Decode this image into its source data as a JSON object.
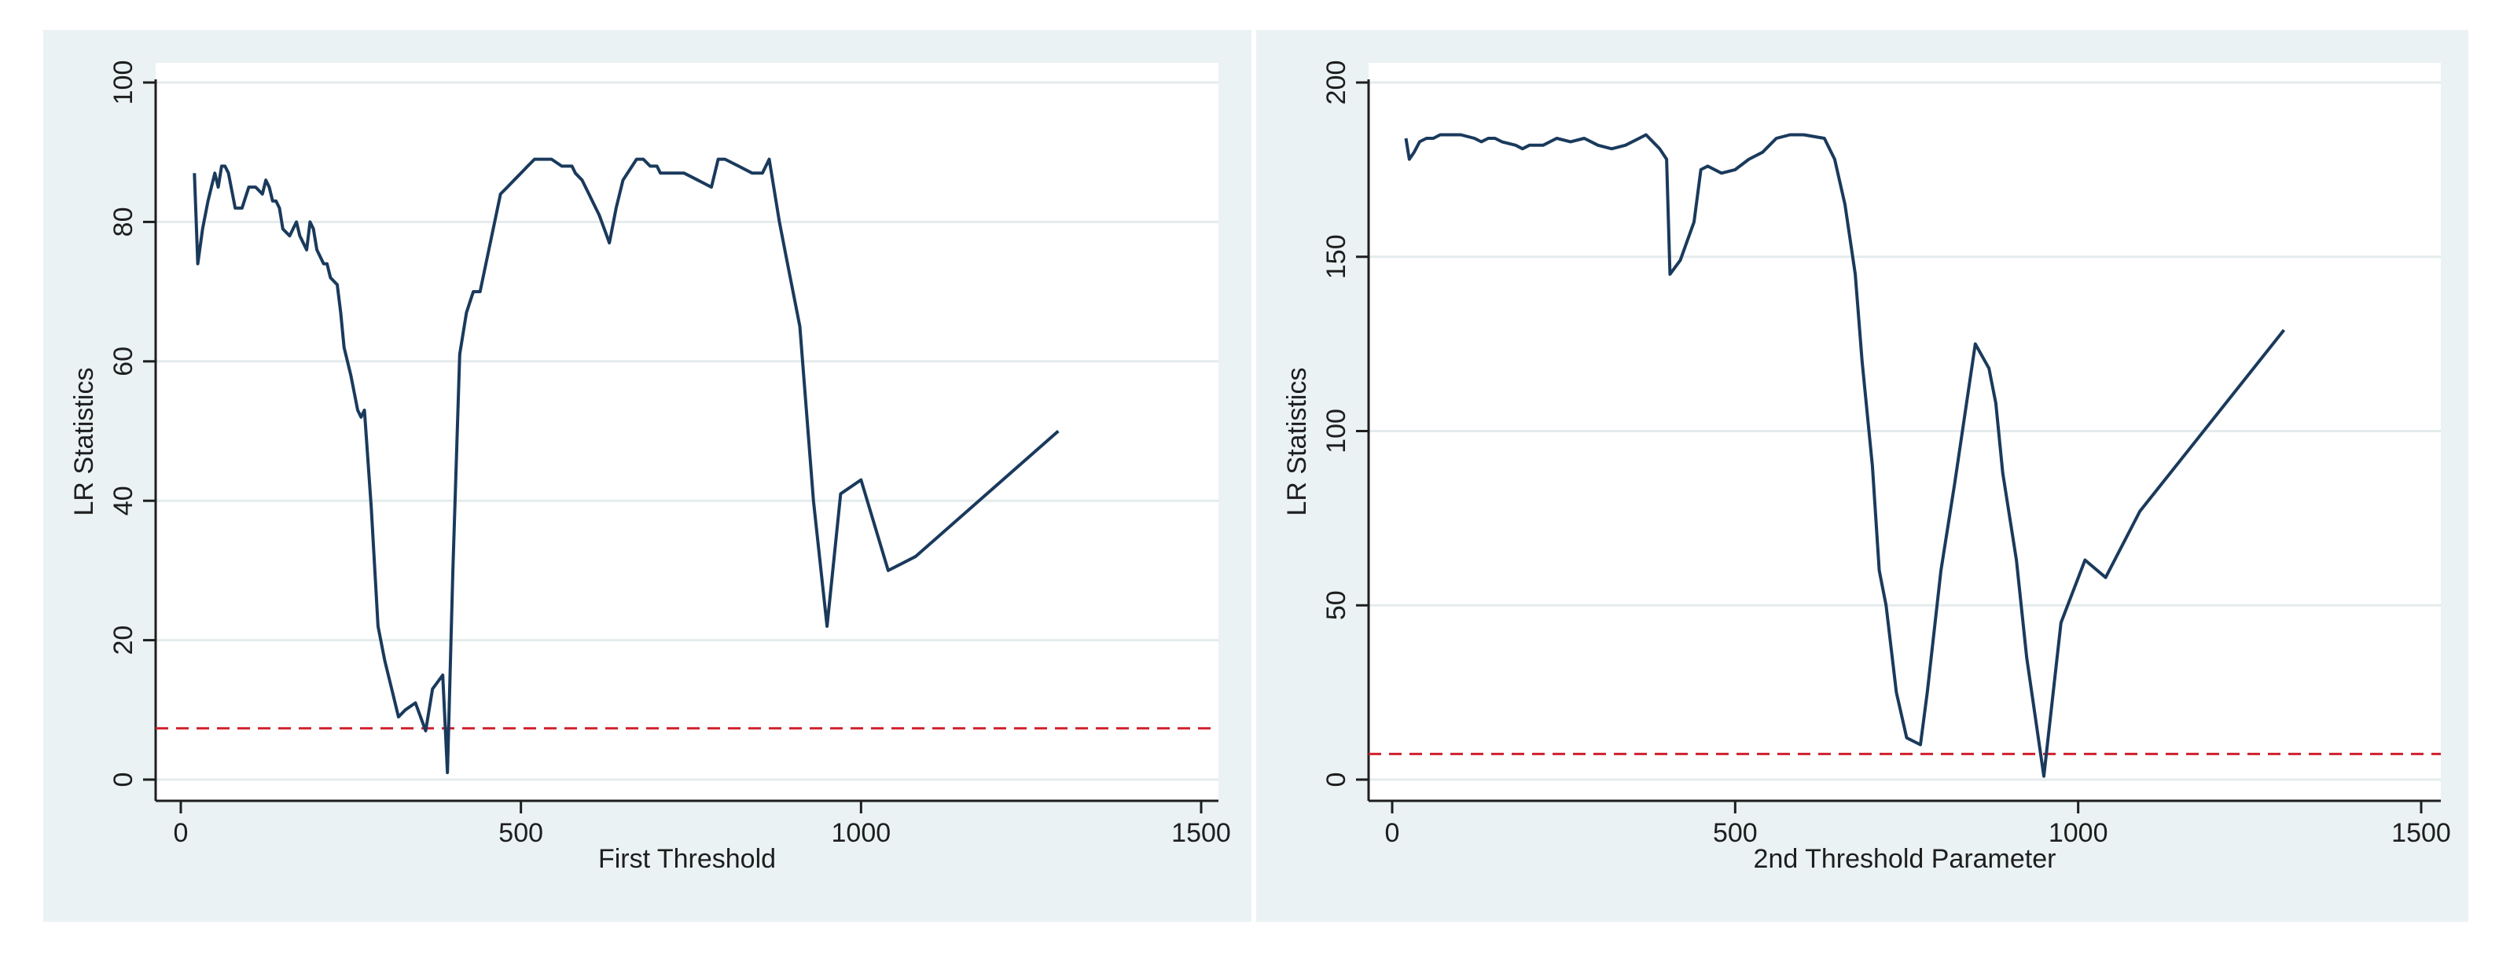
{
  "colors": {
    "outer_bg": "#eaf2f3",
    "plot_bg": "#ffffff",
    "grid": "#e4ebec",
    "axis": "#1e1e1e",
    "text": "#1e1e1e",
    "series_line": "#1a3a5c",
    "threshold_line": "#d0202e"
  },
  "chart_data": [
    {
      "type": "line",
      "title": "",
      "xlabel": "First Threshold",
      "ylabel": "LR Statistics",
      "xlim": [
        0,
        1500
      ],
      "ylim": [
        0,
        100
      ],
      "xticks": [
        "0",
        "500",
        "1000",
        "1500"
      ],
      "yticks": [
        "0",
        "20",
        "40",
        "60",
        "80",
        "100"
      ],
      "grid": true,
      "reference_line": {
        "y": 7.35,
        "style": "dashed"
      },
      "series": [
        {
          "x": [
            20,
            25,
            32,
            40,
            50,
            55,
            60,
            65,
            70,
            80,
            90,
            100,
            110,
            120,
            125,
            130,
            135,
            140,
            145,
            150,
            160,
            170,
            175,
            185,
            190,
            195,
            200,
            205,
            210,
            215,
            220,
            230,
            235,
            240,
            250,
            260,
            265,
            270,
            280,
            290,
            300,
            310,
            320,
            330,
            345,
            360,
            370,
            385,
            392,
            400,
            410,
            420,
            430,
            440,
            455,
            470,
            480,
            490,
            500,
            510,
            520,
            530,
            545,
            560,
            570,
            575,
            580,
            590,
            600,
            605,
            615,
            630,
            640,
            650,
            670,
            680,
            690,
            700,
            705,
            715,
            725,
            740,
            760,
            780,
            790,
            800,
            820,
            840,
            855,
            865,
            880,
            890,
            910,
            930,
            950,
            970,
            1000,
            1040,
            1080,
            1290
          ],
          "y": [
            87,
            74,
            79,
            83,
            87,
            85,
            88,
            88,
            87,
            82,
            82,
            85,
            85,
            84,
            86,
            85,
            83,
            83,
            82,
            79,
            78,
            80,
            78,
            76,
            80,
            79,
            76,
            75,
            74,
            74,
            72,
            71,
            67,
            62,
            58,
            53,
            52,
            53,
            39,
            22,
            17,
            13,
            9,
            10,
            11,
            7,
            13,
            15,
            1,
            30,
            61,
            67,
            70,
            70,
            77,
            84,
            85,
            86,
            87,
            88,
            89,
            89,
            89,
            88,
            88,
            88,
            87,
            86,
            84,
            83,
            81,
            77,
            82,
            86,
            89,
            89,
            88,
            88,
            87,
            87,
            87,
            87,
            86,
            85,
            89,
            89,
            88,
            87,
            87,
            89,
            80,
            75,
            65,
            40,
            22,
            41,
            43,
            30,
            32,
            50
          ]
        }
      ]
    },
    {
      "type": "line",
      "title": "",
      "xlabel": "2nd Threshold Parameter",
      "ylabel": "LR Statistics",
      "xlim": [
        0,
        1500
      ],
      "ylim": [
        0,
        200
      ],
      "xticks": [
        "0",
        "500",
        "1000",
        "1500"
      ],
      "yticks": [
        "0",
        "50",
        "100",
        "150",
        "200"
      ],
      "grid": true,
      "reference_line": {
        "y": 7.35,
        "style": "dashed"
      },
      "series": [
        {
          "x": [
            20,
            25,
            32,
            40,
            50,
            60,
            70,
            80,
            100,
            120,
            130,
            140,
            150,
            160,
            180,
            190,
            200,
            210,
            220,
            230,
            240,
            260,
            280,
            300,
            320,
            340,
            360,
            370,
            390,
            400,
            405,
            420,
            440,
            450,
            460,
            480,
            500,
            520,
            540,
            560,
            580,
            600,
            630,
            645,
            660,
            675,
            685,
            700,
            710,
            720,
            735,
            750,
            770,
            780,
            800,
            820,
            850,
            870,
            880,
            890,
            910,
            925,
            950,
            975,
            1010,
            1040,
            1090,
            1300
          ],
          "y": [
            184,
            178,
            180,
            183,
            184,
            184,
            185,
            185,
            185,
            184,
            183,
            184,
            184,
            183,
            182,
            181,
            182,
            182,
            182,
            183,
            184,
            183,
            184,
            182,
            181,
            182,
            184,
            185,
            181,
            178,
            145,
            149,
            160,
            175,
            176,
            174,
            175,
            178,
            180,
            184,
            185,
            185,
            184,
            178,
            165,
            145,
            120,
            90,
            60,
            50,
            25,
            12,
            10,
            25,
            60,
            85,
            125,
            118,
            108,
            88,
            63,
            35,
            1,
            45,
            63,
            58,
            77,
            129
          ]
        }
      ]
    }
  ]
}
